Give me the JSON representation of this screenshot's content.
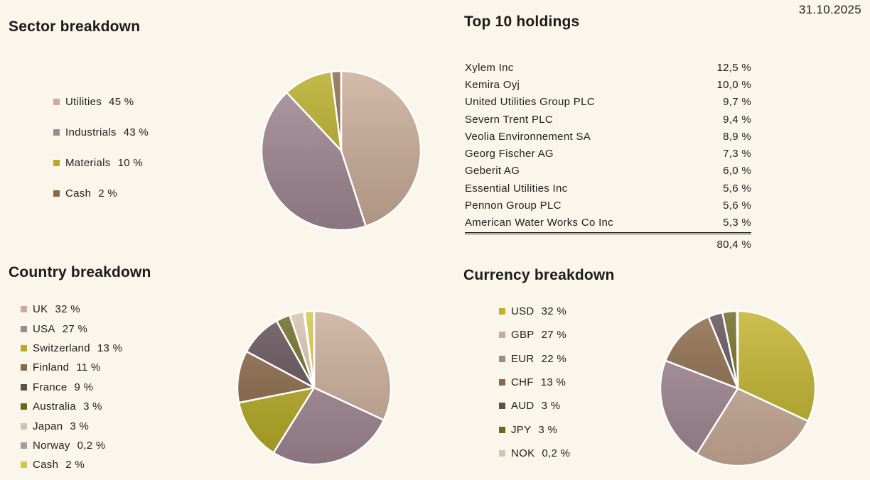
{
  "page": {
    "date": "31.10.2025",
    "background_color": "#faf6ec",
    "text_color": "#201f1b"
  },
  "chart_data": [
    {
      "id": "sector",
      "type": "pie",
      "title": "Sector breakdown",
      "legend_position": "left",
      "slices": [
        {
          "label": "Utilities",
          "value": 45,
          "display": "45 %",
          "color": "#cbac97"
        },
        {
          "label": "Industrials",
          "value": 43,
          "display": "43 %",
          "color": "#a18894"
        },
        {
          "label": "Materials",
          "value": 10,
          "display": "10 %",
          "color": "#b6ab25"
        },
        {
          "label": "Cash",
          "value": 2,
          "display": "2 %",
          "color": "#8a6848"
        }
      ]
    },
    {
      "id": "holdings",
      "type": "table",
      "title": "Top 10 holdings",
      "rows": [
        [
          "Xylem Inc",
          "12,5 %"
        ],
        [
          "Kemira Oyj",
          "10,0 %"
        ],
        [
          "United Utilities Group PLC",
          "9,7 %"
        ],
        [
          "Severn Trent PLC",
          "9,4 %"
        ],
        [
          "Veolia Environnement SA",
          "8,9 %"
        ],
        [
          "Georg Fischer AG",
          "7,3 %"
        ],
        [
          "Geberit AG",
          "6,0 %"
        ],
        [
          "Essential Utilities Inc",
          "5,6 %"
        ],
        [
          "Pennon Group PLC",
          "5,6 %"
        ],
        [
          "American Water Works Co Inc",
          "5,3 %"
        ]
      ],
      "total": "80,4 %"
    },
    {
      "id": "country",
      "type": "pie",
      "title": "Country breakdown",
      "legend_position": "left",
      "slices": [
        {
          "label": "UK",
          "value": 32,
          "display": "32 %",
          "color": "#cbac97"
        },
        {
          "label": "USA",
          "value": 27,
          "display": "27 %",
          "color": "#a18894"
        },
        {
          "label": "Switzerland",
          "value": 13,
          "display": "13 %",
          "color": "#b6ab25"
        },
        {
          "label": "Finland",
          "value": 11,
          "display": "11 %",
          "color": "#8a6848"
        },
        {
          "label": "France",
          "value": 9,
          "display": "9 %",
          "color": "#5f4e53"
        },
        {
          "label": "Australia",
          "value": 3,
          "display": "3 %",
          "color": "#6d671f"
        },
        {
          "label": "Japan",
          "value": 3,
          "display": "3 %",
          "color": "#d6c0af"
        },
        {
          "label": "Norway",
          "value": 0.2,
          "display": "0,2 %",
          "color": "#a89a9e"
        },
        {
          "label": "Cash",
          "value": 2,
          "display": "2 %",
          "color": "#d2c647"
        }
      ]
    },
    {
      "id": "currency",
      "type": "pie",
      "title": "Currency breakdown",
      "legend_position": "left",
      "slices": [
        {
          "label": "USD",
          "value": 32,
          "display": "32 %",
          "color": "#c0b22b"
        },
        {
          "label": "GBP",
          "value": 27,
          "display": "27 %",
          "color": "#cbac97"
        },
        {
          "label": "EUR",
          "value": 22,
          "display": "22 %",
          "color": "#a18894"
        },
        {
          "label": "CHF",
          "value": 13,
          "display": "13 %",
          "color": "#8a6848"
        },
        {
          "label": "AUD",
          "value": 3,
          "display": "3 %",
          "color": "#5f4e53"
        },
        {
          "label": "JPY",
          "value": 3,
          "display": "3 %",
          "color": "#6d671f"
        },
        {
          "label": "NOK",
          "value": 0.2,
          "display": "0,2 %",
          "color": "#d6c0af"
        }
      ]
    }
  ]
}
